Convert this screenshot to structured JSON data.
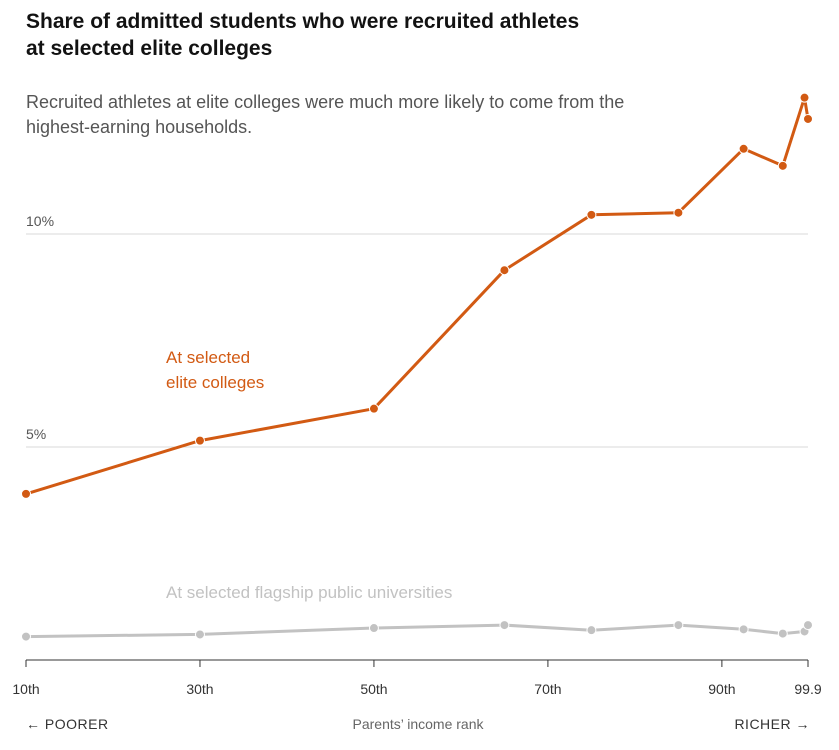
{
  "chart_data": {
    "type": "line",
    "title": "Share of admitted students who were recruited athletes at selected elite colleges",
    "subtitle": "Recruited athletes at elite colleges were much more likely to come from the highest-earning households.",
    "xlabel": "Parents’ income rank",
    "x_left_note": "← POORER",
    "x_right_note": "RICHER →",
    "ylabel": "",
    "xlim": [
      10,
      99.9
    ],
    "ylim": [
      0,
      13.2
    ],
    "y_ticks": [
      {
        "value": 5,
        "label": "5%"
      },
      {
        "value": 10,
        "label": "10%"
      }
    ],
    "x_ticks": [
      {
        "value": 10,
        "label": "10th"
      },
      {
        "value": 30,
        "label": "30th"
      },
      {
        "value": 50,
        "label": "50th"
      },
      {
        "value": 70,
        "label": "70th"
      },
      {
        "value": 90,
        "label": "90th"
      },
      {
        "value": 99.9,
        "label": "99.9"
      }
    ],
    "series": [
      {
        "name": "At selected elite colleges",
        "label_lines": [
          "At selected",
          "elite colleges"
        ],
        "color": "#d25a13",
        "x": [
          10,
          30,
          50,
          65,
          75,
          85,
          92.5,
          97,
          99.5,
          99.9
        ],
        "values": [
          3.9,
          5.15,
          5.9,
          9.15,
          10.45,
          10.5,
          12.0,
          11.6,
          13.2,
          12.7
        ]
      },
      {
        "name": "At selected flagship public universities",
        "label_lines": [
          "At selected flagship public universities"
        ],
        "color": "#c2c2c2",
        "x": [
          10,
          30,
          50,
          65,
          75,
          85,
          92.5,
          97,
          99.5,
          99.9
        ],
        "values": [
          0.55,
          0.6,
          0.75,
          0.82,
          0.7,
          0.82,
          0.72,
          0.62,
          0.67,
          0.82
        ]
      }
    ]
  }
}
